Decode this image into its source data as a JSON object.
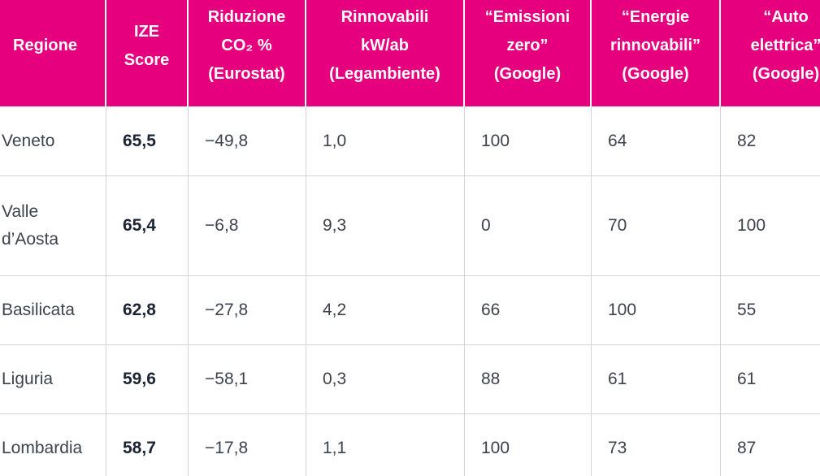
{
  "theme": {
    "header_bg": "#E7007E",
    "header_text": "#FFFFFF",
    "body_text": "#3D434C",
    "score_text": "#1C2433",
    "grid_line": "#D2D5DC"
  },
  "chart_data": {
    "type": "table",
    "title": "",
    "columns": [
      {
        "id": "regione",
        "label": "Regione"
      },
      {
        "id": "ize-score",
        "label": "IZE\nScore"
      },
      {
        "id": "riduzione-co2",
        "label": "Riduzione\nCO₂ %\n(Eurostat)"
      },
      {
        "id": "rinnovabili",
        "label": "Rinnovabili\nkW/ab\n(Legambiente)"
      },
      {
        "id": "emissioni-zero",
        "label": "“Emissioni\nzero”\n(Google)"
      },
      {
        "id": "energie-rinnovabili",
        "label": "“Energie\nrinnovabili”\n(Google)"
      },
      {
        "id": "auto-elettrica",
        "label": "“Auto\nelettrica”\n(Google)"
      }
    ],
    "rows": [
      {
        "cells": [
          "Veneto",
          "65,5",
          "−49,8",
          "1,0",
          "100",
          "64",
          "82"
        ]
      },
      {
        "cells": [
          "Valle\nd’Aosta",
          "65,4",
          "−6,8",
          "9,3",
          "0",
          "70",
          "100"
        ]
      },
      {
        "cells": [
          "Basilicata",
          "62,8",
          "−27,8",
          "4,2",
          "66",
          "100",
          "55"
        ]
      },
      {
        "cells": [
          "Liguria",
          "59,6",
          "−58,1",
          "0,3",
          "88",
          "61",
          "61"
        ]
      },
      {
        "cells": [
          "Lombardia",
          "58,7",
          "−17,8",
          "1,1",
          "100",
          "73",
          "87"
        ]
      }
    ]
  }
}
